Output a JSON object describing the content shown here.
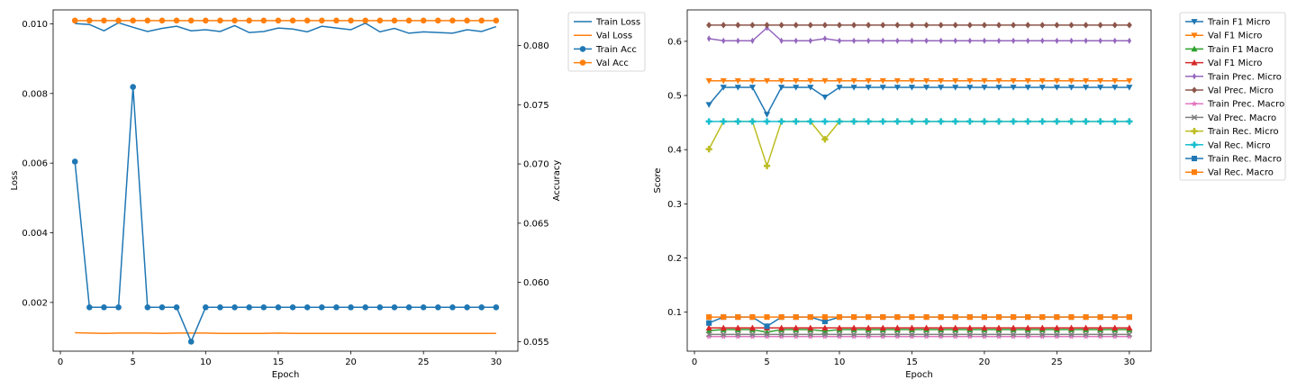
{
  "chart_data": [
    {
      "type": "line",
      "xlabel": "Epoch",
      "ylabel_left": "Loss",
      "ylabel_right": "Accuracy",
      "xlim": [
        -0.5,
        31.5
      ],
      "ylim_left": [
        0.0006,
        0.0104
      ],
      "ylim_right": [
        0.0542,
        0.083
      ],
      "xticks": [
        "0",
        "5",
        "10",
        "15",
        "20",
        "25",
        "30"
      ],
      "yticks_left": [
        "0.002",
        "0.004",
        "0.006",
        "0.008",
        "0.010"
      ],
      "yticks_right": [
        "0.055",
        "0.060",
        "0.065",
        "0.070",
        "0.075",
        "0.080"
      ],
      "legend_position": "outside top-right",
      "x": [
        1,
        2,
        3,
        4,
        5,
        6,
        7,
        8,
        9,
        10,
        11,
        12,
        13,
        14,
        15,
        16,
        17,
        18,
        19,
        20,
        21,
        22,
        23,
        24,
        25,
        26,
        27,
        28,
        29,
        30
      ],
      "series": [
        {
          "name": "Train Loss",
          "axis": "left",
          "color": "#1f77b4",
          "marker": "none",
          "values": [
            0.01001,
            0.00998,
            0.0098,
            0.01003,
            0.0099,
            0.00978,
            0.00987,
            0.00993,
            0.0098,
            0.00983,
            0.00978,
            0.00995,
            0.00975,
            0.00978,
            0.00988,
            0.00985,
            0.00977,
            0.00993,
            0.00988,
            0.00983,
            0.01002,
            0.00977,
            0.00987,
            0.00973,
            0.00977,
            0.00975,
            0.00973,
            0.00983,
            0.00978,
            0.00992
          ]
        },
        {
          "name": "Val Loss",
          "axis": "left",
          "color": "#ff7f0e",
          "marker": "none",
          "values": [
            0.00113,
            0.00112,
            0.00111,
            0.00112,
            0.00112,
            0.00112,
            0.00111,
            0.00112,
            0.00112,
            0.00112,
            0.00111,
            0.00111,
            0.00111,
            0.00111,
            0.00112,
            0.00111,
            0.00111,
            0.00111,
            0.00111,
            0.00111,
            0.00111,
            0.00111,
            0.00111,
            0.00111,
            0.00111,
            0.00111,
            0.00111,
            0.00111,
            0.00111,
            0.00111
          ]
        },
        {
          "name": "Train Acc",
          "axis": "right",
          "color": "#1f77b4",
          "marker": "circle",
          "values": [
            0.0702,
            0.0579,
            0.0579,
            0.0579,
            0.0765,
            0.0579,
            0.0579,
            0.0579,
            0.055,
            0.0579,
            0.0579,
            0.0579,
            0.0579,
            0.0579,
            0.0579,
            0.0579,
            0.0579,
            0.0579,
            0.0579,
            0.0579,
            0.0579,
            0.0579,
            0.0579,
            0.0579,
            0.0579,
            0.0579,
            0.0579,
            0.0579,
            0.0579,
            0.0579
          ]
        },
        {
          "name": "Val Acc",
          "axis": "right",
          "color": "#ff7f0e",
          "marker": "circle",
          "values": [
            0.0821,
            0.0821,
            0.0821,
            0.0821,
            0.0821,
            0.0821,
            0.0821,
            0.0821,
            0.0821,
            0.0821,
            0.0821,
            0.0821,
            0.0821,
            0.0821,
            0.0821,
            0.0821,
            0.0821,
            0.0821,
            0.0821,
            0.0821,
            0.0821,
            0.0821,
            0.0821,
            0.0821,
            0.0821,
            0.0821,
            0.0821,
            0.0821,
            0.0821,
            0.0821
          ]
        }
      ]
    },
    {
      "type": "line",
      "xlabel": "Epoch",
      "ylabel": "Score",
      "xlim": [
        -0.5,
        31.5
      ],
      "ylim": [
        0.028,
        0.658
      ],
      "xticks": [
        "0",
        "5",
        "10",
        "15",
        "20",
        "25",
        "30"
      ],
      "yticks": [
        "0.1",
        "0.2",
        "0.3",
        "0.4",
        "0.5",
        "0.6"
      ],
      "legend_position": "outside top-right",
      "x": [
        1,
        2,
        3,
        4,
        5,
        6,
        7,
        8,
        9,
        10,
        11,
        12,
        13,
        14,
        15,
        16,
        17,
        18,
        19,
        20,
        21,
        22,
        23,
        24,
        25,
        26,
        27,
        28,
        29,
        30
      ],
      "series": [
        {
          "name": "Train F1 Micro",
          "color": "#1f77b4",
          "marker": "triangle-down",
          "values": [
            0.483,
            0.515,
            0.515,
            0.515,
            0.465,
            0.515,
            0.515,
            0.515,
            0.497,
            0.515,
            0.515,
            0.515,
            0.515,
            0.515,
            0.515,
            0.515,
            0.515,
            0.515,
            0.515,
            0.515,
            0.515,
            0.515,
            0.515,
            0.515,
            0.515,
            0.515,
            0.515,
            0.515,
            0.515,
            0.515
          ]
        },
        {
          "name": "Val F1 Micro",
          "color": "#ff7f0e",
          "marker": "triangle-down",
          "values": [
            0.527,
            0.527,
            0.527,
            0.527,
            0.527,
            0.527,
            0.527,
            0.527,
            0.527,
            0.527,
            0.527,
            0.527,
            0.527,
            0.527,
            0.527,
            0.527,
            0.527,
            0.527,
            0.527,
            0.527,
            0.527,
            0.527,
            0.527,
            0.527,
            0.527,
            0.527,
            0.527,
            0.527,
            0.527,
            0.527
          ]
        },
        {
          "name": "Train F1 Macro",
          "color": "#2ca02c",
          "marker": "triangle-up",
          "values": [
            0.066,
            0.068,
            0.068,
            0.068,
            0.063,
            0.068,
            0.068,
            0.068,
            0.065,
            0.068,
            0.068,
            0.068,
            0.068,
            0.068,
            0.068,
            0.068,
            0.068,
            0.068,
            0.068,
            0.068,
            0.068,
            0.068,
            0.068,
            0.068,
            0.068,
            0.068,
            0.068,
            0.068,
            0.068,
            0.068
          ]
        },
        {
          "name": "Val F1 Micro",
          "color": "#d62728",
          "marker": "triangle-up",
          "values": [
            0.071,
            0.071,
            0.071,
            0.071,
            0.071,
            0.071,
            0.071,
            0.071,
            0.071,
            0.071,
            0.071,
            0.071,
            0.071,
            0.071,
            0.071,
            0.071,
            0.071,
            0.071,
            0.071,
            0.071,
            0.071,
            0.071,
            0.071,
            0.071,
            0.071,
            0.071,
            0.071,
            0.071,
            0.071,
            0.071
          ]
        },
        {
          "name": "Train Prec. Micro",
          "color": "#9467bd",
          "marker": "thin-diamond",
          "values": [
            0.605,
            0.601,
            0.601,
            0.601,
            0.625,
            0.601,
            0.601,
            0.601,
            0.605,
            0.601,
            0.601,
            0.601,
            0.601,
            0.601,
            0.601,
            0.601,
            0.601,
            0.601,
            0.601,
            0.601,
            0.601,
            0.601,
            0.601,
            0.601,
            0.601,
            0.601,
            0.601,
            0.601,
            0.601,
            0.601
          ]
        },
        {
          "name": "Val Prec. Micro",
          "color": "#8c564b",
          "marker": "diamond",
          "values": [
            0.63,
            0.63,
            0.63,
            0.63,
            0.63,
            0.63,
            0.63,
            0.63,
            0.63,
            0.63,
            0.63,
            0.63,
            0.63,
            0.63,
            0.63,
            0.63,
            0.63,
            0.63,
            0.63,
            0.63,
            0.63,
            0.63,
            0.63,
            0.63,
            0.63,
            0.63,
            0.63,
            0.63,
            0.63,
            0.63
          ]
        },
        {
          "name": "Train Prec. Macro",
          "color": "#e377c2",
          "marker": "star",
          "values": [
            0.055,
            0.055,
            0.055,
            0.055,
            0.055,
            0.055,
            0.055,
            0.055,
            0.055,
            0.055,
            0.055,
            0.055,
            0.055,
            0.055,
            0.055,
            0.055,
            0.055,
            0.055,
            0.055,
            0.055,
            0.055,
            0.055,
            0.055,
            0.055,
            0.055,
            0.055,
            0.055,
            0.055,
            0.055,
            0.055
          ]
        },
        {
          "name": "Val Prec. Macro",
          "color": "#7f7f7f",
          "marker": "x",
          "values": [
            0.059,
            0.059,
            0.059,
            0.059,
            0.059,
            0.059,
            0.059,
            0.059,
            0.059,
            0.059,
            0.059,
            0.059,
            0.059,
            0.059,
            0.059,
            0.059,
            0.059,
            0.059,
            0.059,
            0.059,
            0.059,
            0.059,
            0.059,
            0.059,
            0.059,
            0.059,
            0.059,
            0.059,
            0.059,
            0.059
          ]
        },
        {
          "name": "Train Rec. Micro",
          "color": "#bcbd22",
          "marker": "plus",
          "values": [
            0.401,
            0.452,
            0.452,
            0.452,
            0.37,
            0.452,
            0.452,
            0.452,
            0.419,
            0.452,
            0.452,
            0.452,
            0.452,
            0.452,
            0.452,
            0.452,
            0.452,
            0.452,
            0.452,
            0.452,
            0.452,
            0.452,
            0.452,
            0.452,
            0.452,
            0.452,
            0.452,
            0.452,
            0.452,
            0.452
          ]
        },
        {
          "name": "Val Rec. Micro",
          "color": "#17becf",
          "marker": "plus",
          "values": [
            0.452,
            0.452,
            0.452,
            0.452,
            0.452,
            0.452,
            0.452,
            0.452,
            0.452,
            0.452,
            0.452,
            0.452,
            0.452,
            0.452,
            0.452,
            0.452,
            0.452,
            0.452,
            0.452,
            0.452,
            0.452,
            0.452,
            0.452,
            0.452,
            0.452,
            0.452,
            0.452,
            0.452,
            0.452,
            0.452
          ]
        },
        {
          "name": "Train Rec. Macro",
          "color": "#1f77b4",
          "marker": "square",
          "values": [
            0.08,
            0.091,
            0.091,
            0.091,
            0.074,
            0.091,
            0.091,
            0.091,
            0.083,
            0.091,
            0.091,
            0.091,
            0.091,
            0.091,
            0.091,
            0.091,
            0.091,
            0.091,
            0.091,
            0.091,
            0.091,
            0.091,
            0.091,
            0.091,
            0.091,
            0.091,
            0.091,
            0.091,
            0.091,
            0.091
          ]
        },
        {
          "name": "Val Rec. Macro",
          "color": "#ff7f0e",
          "marker": "square",
          "values": [
            0.091,
            0.091,
            0.091,
            0.091,
            0.091,
            0.091,
            0.091,
            0.091,
            0.091,
            0.091,
            0.091,
            0.091,
            0.091,
            0.091,
            0.091,
            0.091,
            0.091,
            0.091,
            0.091,
            0.091,
            0.091,
            0.091,
            0.091,
            0.091,
            0.091,
            0.091,
            0.091,
            0.091,
            0.091,
            0.091
          ]
        }
      ]
    }
  ]
}
